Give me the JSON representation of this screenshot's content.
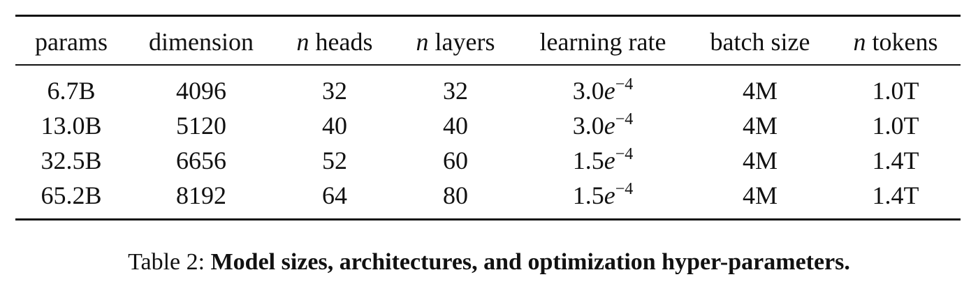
{
  "table": {
    "header": [
      "params",
      "dimension",
      {
        "math": "n",
        "text": "heads"
      },
      {
        "math": "n",
        "text": "layers"
      },
      "learning rate",
      "batch size",
      {
        "math": "n",
        "text": "tokens"
      }
    ],
    "rows": [
      [
        "6.7B",
        "4096",
        "32",
        "32",
        {
          "base": "3.0",
          "symbol": "e",
          "exponent": "−4"
        },
        "4M",
        "1.0T"
      ],
      [
        "13.0B",
        "5120",
        "40",
        "40",
        {
          "base": "3.0",
          "symbol": "e",
          "exponent": "−4"
        },
        "4M",
        "1.0T"
      ],
      [
        "32.5B",
        "6656",
        "52",
        "60",
        {
          "base": "1.5",
          "symbol": "e",
          "exponent": "−4"
        },
        "4M",
        "1.4T"
      ],
      [
        "65.2B",
        "8192",
        "64",
        "80",
        {
          "base": "1.5",
          "symbol": "e",
          "exponent": "−4"
        },
        "4M",
        "1.4T"
      ]
    ]
  },
  "caption": {
    "label": "Table 2:",
    "text": "Model sizes, architectures, and optimization hyper-parameters."
  }
}
